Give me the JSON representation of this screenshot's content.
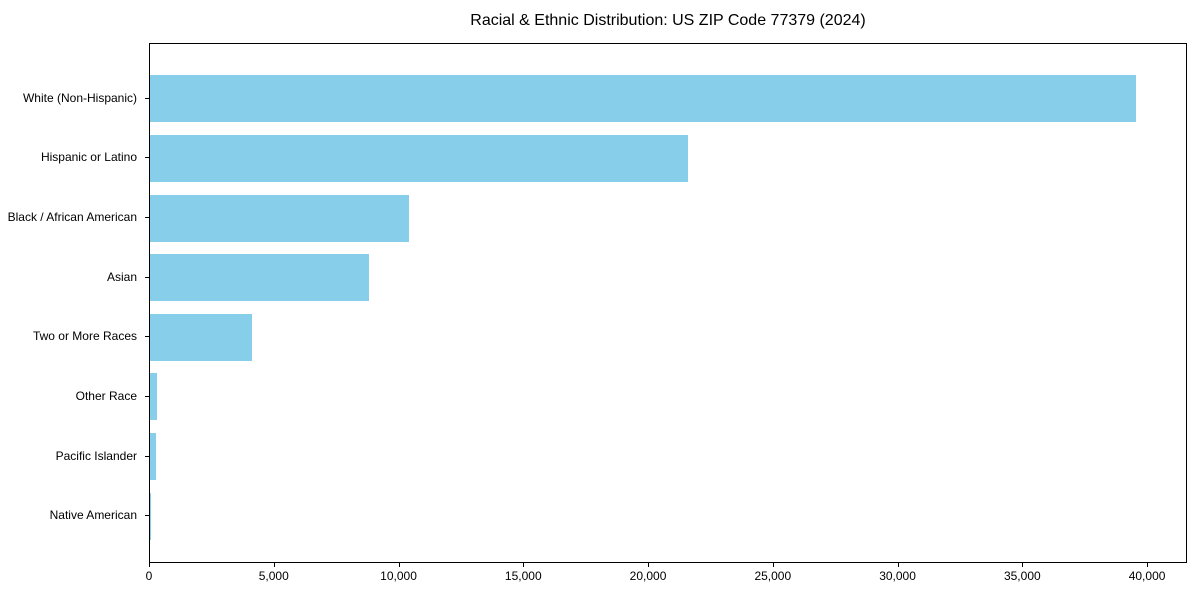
{
  "chart_data": {
    "type": "bar",
    "orientation": "horizontal",
    "title": "Racial & Ethnic Distribution: US ZIP Code 77379 (2024)",
    "categories": [
      "White (Non-Hispanic)",
      "Hispanic or Latino",
      "Black / African American",
      "Asian",
      "Two or More Races",
      "Other Race",
      "Pacific Islander",
      "Native American"
    ],
    "values": [
      39600,
      21600,
      10400,
      8800,
      4100,
      300,
      250,
      60
    ],
    "xlabel": "",
    "ylabel": "",
    "xlim": [
      0,
      41600
    ],
    "xticks": [
      0,
      5000,
      10000,
      15000,
      20000,
      25000,
      30000,
      35000,
      40000
    ],
    "xtick_labels": [
      "0",
      "5,000",
      "10,000",
      "15,000",
      "20,000",
      "25,000",
      "30,000",
      "35,000",
      "40,000"
    ],
    "bar_color": "#87CEEB",
    "axis_color": "#000000",
    "background_color": "#ffffff",
    "grid": false,
    "legend_position": "none"
  }
}
